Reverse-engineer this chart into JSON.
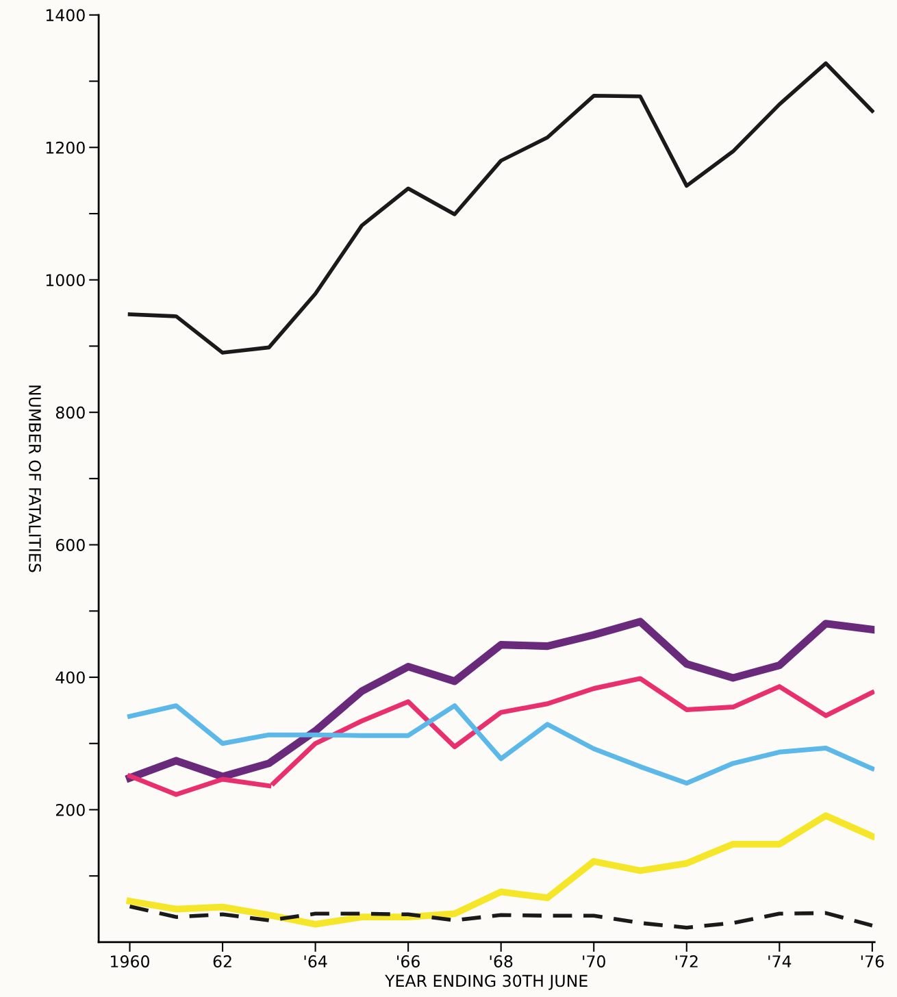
{
  "chart_data": {
    "type": "line",
    "xlabel": "YEAR ENDING 30TH JUNE",
    "ylabel": "NUMBER OF FATALITIES",
    "x": [
      1960,
      1961,
      1962,
      1963,
      1964,
      1965,
      1966,
      1967,
      1968,
      1969,
      1970,
      1971,
      1972,
      1973,
      1974,
      1975,
      1976
    ],
    "series": [
      {
        "color": "#1a1a1a",
        "values": [
          948,
          945,
          890,
          898,
          979,
          1082,
          1138,
          1099,
          1180,
          1215,
          1278,
          1277,
          1142,
          1194,
          1265,
          1327,
          1255
        ]
      },
      {
        "color": "#6a2a7c",
        "values": [
          248,
          274,
          250,
          270,
          319,
          379,
          416,
          394,
          449,
          447,
          464,
          484,
          420,
          399,
          418,
          481,
          472
        ]
      },
      {
        "color": "#e8306e",
        "x": [
          1960,
          1961,
          1962,
          1963,
          1963.05,
          1963.1,
          1964,
          1965,
          1966,
          1967,
          1968,
          1969,
          1970,
          1971,
          1972,
          1973,
          1974,
          1975,
          1976
        ],
        "values": [
          251,
          223,
          246,
          236,
          null,
          240,
          300,
          334,
          363,
          295,
          347,
          360,
          383,
          398,
          351,
          355,
          386,
          342,
          377
        ]
      },
      {
        "color": "#5bb8e8",
        "values": [
          341,
          357,
          300,
          313,
          313,
          312,
          312,
          357,
          277,
          329,
          292,
          265,
          240,
          270,
          287,
          293,
          262
        ]
      },
      {
        "color": "#f5e62a",
        "values": [
          62,
          50,
          53,
          41,
          27,
          38,
          38,
          43,
          76,
          67,
          122,
          108,
          119,
          148,
          148,
          191,
          160
        ]
      },
      {
        "color": "#1a1a1a",
        "line_style": "dashed",
        "values": [
          54,
          38,
          42,
          33,
          43,
          43,
          42,
          33,
          41,
          40,
          40,
          29,
          22,
          29,
          43,
          44,
          25
        ]
      }
    ],
    "xlim": [
      1959.33,
      1976.05
    ],
    "xticks": [
      {
        "value": 1960,
        "label": "1960"
      },
      {
        "value": 1962,
        "label": "62"
      },
      {
        "value": 1964,
        "label": "'64"
      },
      {
        "value": 1966,
        "label": "'66"
      },
      {
        "value": 1968,
        "label": "'68"
      },
      {
        "value": 1970,
        "label": "'70"
      },
      {
        "value": 1972,
        "label": "'72"
      },
      {
        "value": 1974,
        "label": "'74"
      },
      {
        "value": 1976,
        "label": "'76"
      }
    ],
    "ylim": [
      0,
      1400
    ],
    "yticks": [
      {
        "value": 100,
        "label": null
      },
      200,
      {
        "value": 300,
        "label": null
      },
      400,
      {
        "value": 500,
        "label": null
      },
      600,
      {
        "value": 700,
        "label": null
      },
      800,
      {
        "value": 900,
        "label": null
      },
      1000,
      {
        "value": 1100,
        "label": null
      },
      1200,
      {
        "value": 1300,
        "label": null
      },
      1400
    ],
    "grid": false,
    "legend": false,
    "marker": "none",
    "line_style": "solid"
  }
}
